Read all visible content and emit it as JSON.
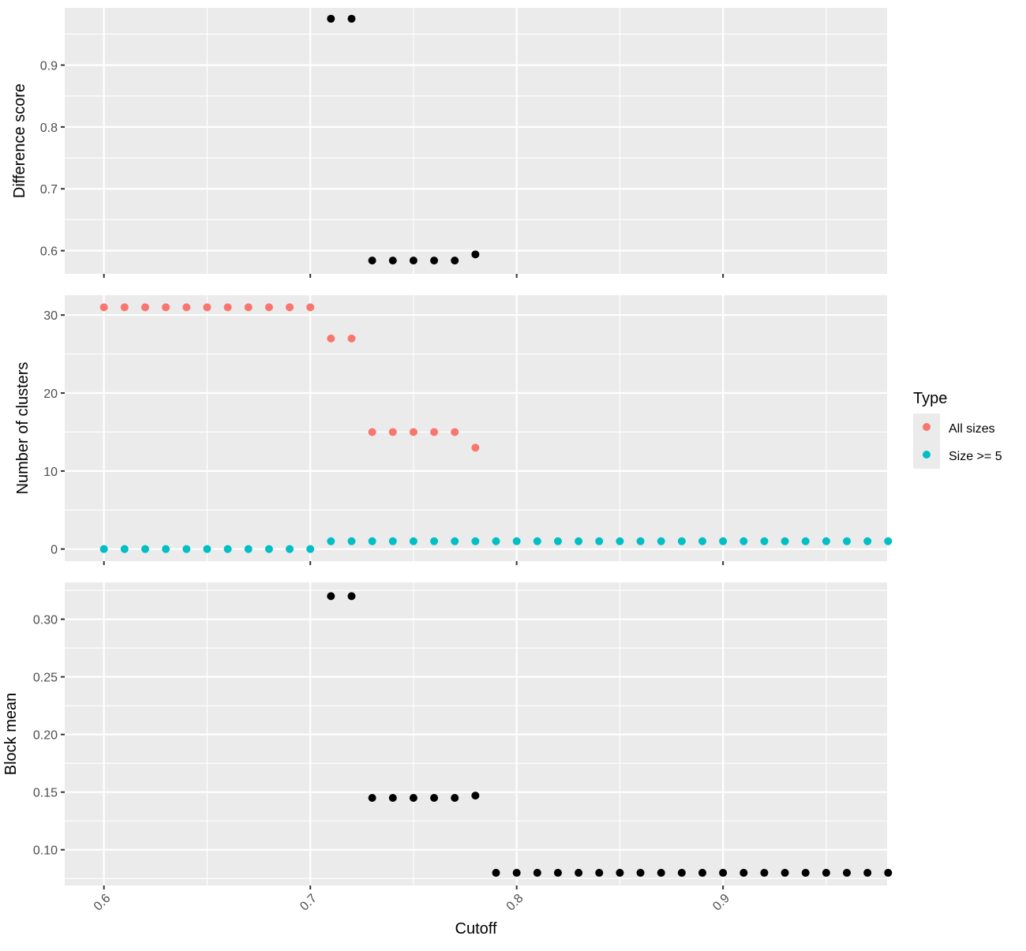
{
  "colors": {
    "panel_bg": "#EBEBEB",
    "grid": "#FFFFFF",
    "tick_text": "#4D4D4D",
    "axis_title": "#000000",
    "black_points": "#000000",
    "all_sizes": "#F8766D",
    "size_ge_5": "#00BFC4",
    "legend_key_bg": "#EBEBEB"
  },
  "legend": {
    "title": "Type",
    "items": [
      {
        "label": "All sizes",
        "color": "#F8766D"
      },
      {
        "label": "Size >= 5",
        "color": "#00BFC4"
      }
    ]
  },
  "x_axis": {
    "label": "Cutoff",
    "ticks": [
      0.6,
      0.7,
      0.8,
      0.9
    ],
    "tick_labels": [
      "0.6",
      "0.7",
      "0.8",
      "0.9"
    ],
    "range": [
      0.581,
      0.9795
    ]
  },
  "chart_data": [
    {
      "type": "scatter",
      "ylabel": "Difference score",
      "ylim": [
        0.5625,
        0.9925
      ],
      "yticks": [
        0.6,
        0.7,
        0.8,
        0.9
      ],
      "ytick_labels": [
        "0.6",
        "0.7",
        "0.8",
        "0.9"
      ],
      "grid": true,
      "series": [
        {
          "color": "#000000",
          "x": [
            0.71,
            0.72,
            0.73,
            0.74,
            0.75,
            0.76,
            0.77,
            0.78
          ],
          "y": [
            0.975,
            0.975,
            0.584,
            0.584,
            0.584,
            0.584,
            0.584,
            0.594
          ]
        }
      ]
    },
    {
      "type": "scatter",
      "ylabel": "Number of clusters",
      "ylim": [
        -1.55,
        32.55
      ],
      "yticks": [
        0,
        10,
        20,
        30
      ],
      "ytick_labels": [
        "0",
        "10",
        "20",
        "30"
      ],
      "grid": true,
      "legend": "right",
      "series": [
        {
          "name": "All sizes",
          "color": "#F8766D",
          "x": [
            0.6,
            0.61,
            0.62,
            0.63,
            0.64,
            0.65,
            0.66,
            0.67,
            0.68,
            0.69,
            0.7,
            0.71,
            0.72,
            0.73,
            0.74,
            0.75,
            0.76,
            0.77,
            0.78
          ],
          "y": [
            31,
            31,
            31,
            31,
            31,
            31,
            31,
            31,
            31,
            31,
            31,
            27,
            27,
            15,
            15,
            15,
            15,
            15,
            13
          ]
        },
        {
          "name": "Size >= 5",
          "color": "#00BFC4",
          "x": [
            0.6,
            0.61,
            0.62,
            0.63,
            0.64,
            0.65,
            0.66,
            0.67,
            0.68,
            0.69,
            0.7,
            0.71,
            0.72,
            0.73,
            0.74,
            0.75,
            0.76,
            0.77,
            0.78,
            0.79,
            0.8,
            0.81,
            0.82,
            0.83,
            0.84,
            0.85,
            0.86,
            0.87,
            0.88,
            0.89,
            0.9,
            0.91,
            0.92,
            0.93,
            0.94,
            0.95,
            0.96,
            0.97,
            0.98
          ],
          "y": [
            0,
            0,
            0,
            0,
            0,
            0,
            0,
            0,
            0,
            0,
            0,
            1,
            1,
            1,
            1,
            1,
            1,
            1,
            1,
            1,
            1,
            1,
            1,
            1,
            1,
            1,
            1,
            1,
            1,
            1,
            1,
            1,
            1,
            1,
            1,
            1,
            1,
            1,
            1
          ]
        }
      ]
    },
    {
      "type": "scatter",
      "ylabel": "Block mean",
      "xlabel": "Cutoff",
      "ylim": [
        0.069,
        0.3319
      ],
      "yticks": [
        0.1,
        0.15,
        0.2,
        0.25,
        0.3
      ],
      "ytick_labels": [
        "0.10",
        "0.15",
        "0.20",
        "0.25",
        "0.30"
      ],
      "grid": true,
      "series": [
        {
          "color": "#000000",
          "x": [
            0.71,
            0.72,
            0.73,
            0.74,
            0.75,
            0.76,
            0.77,
            0.78,
            0.79,
            0.8,
            0.81,
            0.82,
            0.83,
            0.84,
            0.85,
            0.86,
            0.87,
            0.88,
            0.89,
            0.9,
            0.91,
            0.92,
            0.93,
            0.94,
            0.95,
            0.96,
            0.97,
            0.98
          ],
          "y": [
            0.32,
            0.32,
            0.145,
            0.145,
            0.145,
            0.145,
            0.145,
            0.147,
            0.08,
            0.08,
            0.08,
            0.08,
            0.08,
            0.08,
            0.08,
            0.08,
            0.08,
            0.08,
            0.08,
            0.08,
            0.08,
            0.08,
            0.08,
            0.08,
            0.08,
            0.08,
            0.08,
            0.08
          ]
        }
      ]
    }
  ]
}
